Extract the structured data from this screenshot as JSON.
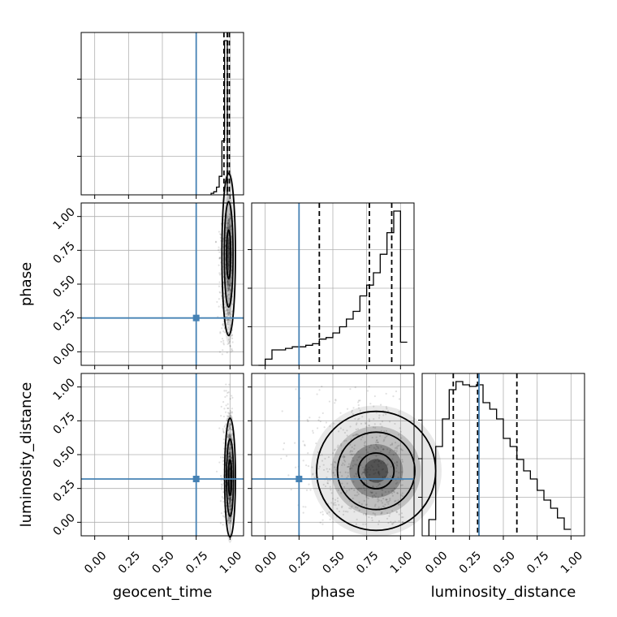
{
  "chart_data": {
    "type": "corner",
    "parameters": [
      "geocent_time",
      "phase",
      "luminosity_distance"
    ],
    "axis_range": [
      -0.1,
      1.1
    ],
    "tick_values": [
      0.0,
      0.25,
      0.5,
      0.75,
      1.0
    ],
    "tick_labels": [
      "0.00",
      "0.25",
      "0.50",
      "0.75",
      "1.00"
    ],
    "grid": true,
    "truth_color": "#4682b4",
    "truths": {
      "geocent_time": 0.75,
      "phase": 0.25,
      "luminosity_distance": 0.32
    },
    "quantiles": {
      "geocent_time": [
        0.955,
        0.98,
        0.995
      ],
      "phase": [
        0.4,
        0.77,
        0.935
      ],
      "luminosity_distance": [
        0.13,
        0.31,
        0.6
      ]
    },
    "histograms": {
      "geocent_time": {
        "edges": [
          0.86,
          0.88,
          0.9,
          0.92,
          0.94,
          0.96,
          0.98,
          1.0
        ],
        "counts": [
          0.01,
          0.02,
          0.05,
          0.12,
          0.35,
          1.0,
          0.0
        ]
      },
      "phase": {
        "edges": [
          -0.05,
          0.0,
          0.05,
          0.1,
          0.15,
          0.2,
          0.25,
          0.3,
          0.35,
          0.4,
          0.45,
          0.5,
          0.55,
          0.6,
          0.65,
          0.7,
          0.75,
          0.8,
          0.85,
          0.9,
          0.95,
          1.0,
          1.05
        ],
        "counts": [
          0.0,
          0.04,
          0.1,
          0.1,
          0.11,
          0.12,
          0.12,
          0.13,
          0.14,
          0.17,
          0.18,
          0.21,
          0.25,
          0.3,
          0.35,
          0.45,
          0.52,
          0.6,
          0.72,
          0.86,
          1.0,
          0.15
        ]
      },
      "luminosity_distance": {
        "edges": [
          -0.05,
          0.0,
          0.05,
          0.1,
          0.15,
          0.2,
          0.25,
          0.3,
          0.35,
          0.4,
          0.45,
          0.5,
          0.55,
          0.6,
          0.65,
          0.7,
          0.75,
          0.8,
          0.85,
          0.9,
          0.95,
          1.0
        ],
        "counts": [
          0.1,
          0.55,
          0.72,
          0.9,
          0.95,
          0.93,
          0.92,
          0.93,
          0.82,
          0.78,
          0.72,
          0.6,
          0.55,
          0.47,
          0.4,
          0.35,
          0.28,
          0.22,
          0.17,
          0.11,
          0.04
        ]
      }
    },
    "densities": [
      {
        "x": "geocent_time",
        "y": "phase",
        "cx": 0.99,
        "cy": 0.72,
        "sx": 0.025,
        "sy": 0.3
      },
      {
        "x": "geocent_time",
        "y": "luminosity_distance",
        "cx": 1.0,
        "cy": 0.33,
        "sx": 0.02,
        "sy": 0.22
      },
      {
        "x": "phase",
        "y": "luminosity_distance",
        "cx": 0.82,
        "cy": 0.38,
        "sx": 0.22,
        "sy": 0.22
      }
    ]
  }
}
